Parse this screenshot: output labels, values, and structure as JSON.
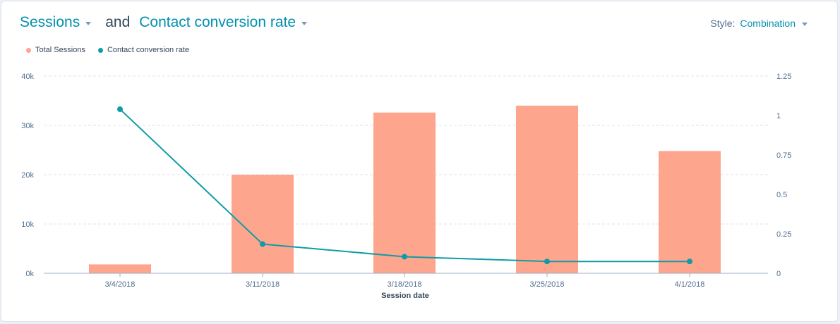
{
  "header": {
    "primary_metric": "Sessions",
    "joiner": "and",
    "secondary_metric": "Contact conversion rate",
    "style_label": "Style:",
    "style_value": "Combination"
  },
  "colors": {
    "accent": "#0091ae",
    "text_dark": "#33475b",
    "bar": "#fea58e",
    "line": "#0f9ca6",
    "grid": "#dfe3eb",
    "axis": "#99afc4"
  },
  "chart_data": {
    "type": "bar",
    "title": "",
    "xlabel": "Session date",
    "categories": [
      "3/4/2018",
      "3/11/2018",
      "3/18/2018",
      "3/25/2018",
      "4/1/2018"
    ],
    "series": [
      {
        "name": "Total Sessions",
        "type": "bar",
        "axis": "left",
        "values": [
          1800,
          20000,
          32600,
          34000,
          24800
        ]
      },
      {
        "name": "Contact conversion rate",
        "type": "line",
        "axis": "right",
        "values": [
          1.04,
          0.185,
          0.105,
          0.075,
          0.075
        ]
      }
    ],
    "y_left": {
      "ylim": [
        0,
        40000
      ],
      "ticks": [
        0,
        10000,
        20000,
        30000,
        40000
      ],
      "tick_labels": [
        "0k",
        "10k",
        "20k",
        "30k",
        "40k"
      ]
    },
    "y_right": {
      "ylim": [
        0,
        1.25
      ],
      "ticks": [
        0,
        0.25,
        0.5,
        0.75,
        1,
        1.25
      ],
      "tick_labels": [
        "0",
        "0.25",
        "0.5",
        "0.75",
        "1",
        "1.25"
      ]
    },
    "grid": true,
    "legend": "top-left"
  }
}
